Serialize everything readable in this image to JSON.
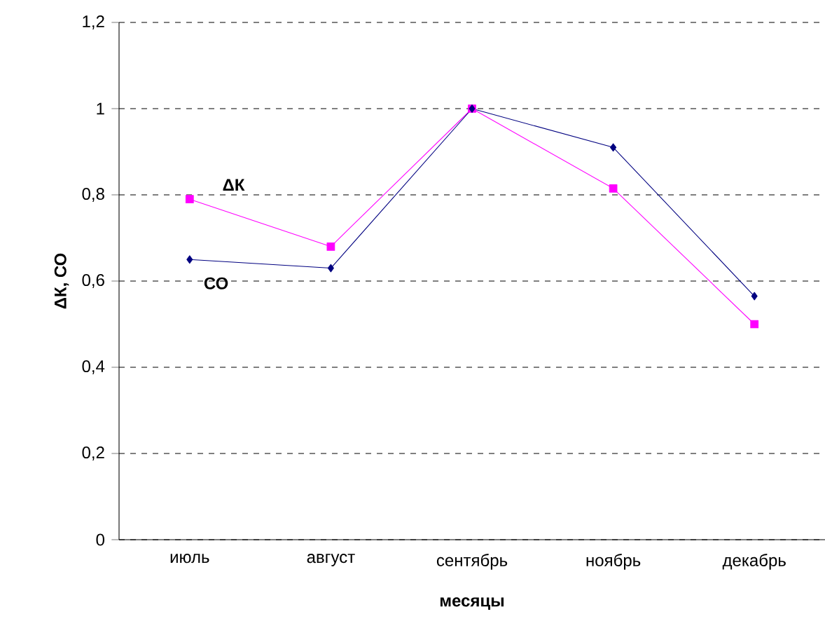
{
  "chart_data": {
    "type": "line",
    "xlabel": "месяцы",
    "ylabel": "ΔК, СО",
    "categories": [
      "июль",
      "август",
      "сентябрь",
      "ноябрь",
      "декабрь"
    ],
    "series": [
      {
        "name": "ΔК",
        "color": "#ff00ff",
        "marker": "square",
        "values": [
          0.79,
          0.68,
          1.0,
          0.815,
          0.5
        ]
      },
      {
        "name": "СО",
        "color": "#000080",
        "marker": "diamond",
        "values": [
          0.65,
          0.63,
          1.0,
          0.91,
          0.565
        ]
      }
    ],
    "ylim": [
      0,
      1.2
    ],
    "yticks": [
      0,
      {
        "value": 0.2,
        "label": "0,2"
      },
      {
        "value": 0.4,
        "label": "0,4"
      },
      {
        "value": 0.6,
        "label": "0,6"
      },
      {
        "value": 0.8,
        "label": "0,8"
      },
      1,
      {
        "value": 1.2,
        "label": "1,2"
      }
    ],
    "grid": "y",
    "legend": false,
    "line_style": "solid"
  }
}
